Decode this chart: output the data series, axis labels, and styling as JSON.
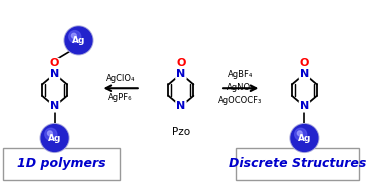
{
  "bg_color": "#ffffff",
  "ag_color": "#2222cc",
  "o_color": "#ff0000",
  "n_color": "#0000cc",
  "bond_color": "#000000",
  "arrow_color": "#000000",
  "box_color": "#999999",
  "label_color": "#0000cc",
  "label_1d": "1D polymers",
  "label_discrete": "Discrete Structures",
  "pzo_label": "Pzo",
  "left_arrow_text1": "AgClO₄",
  "left_arrow_text2": "AgPF₆",
  "right_arrow_text1": "AgBF₄",
  "right_arrow_text2": "AgNO₃",
  "right_arrow_text3": "AgOCOCF₃",
  "figsize": [
    3.78,
    1.87
  ],
  "dpi": 100
}
